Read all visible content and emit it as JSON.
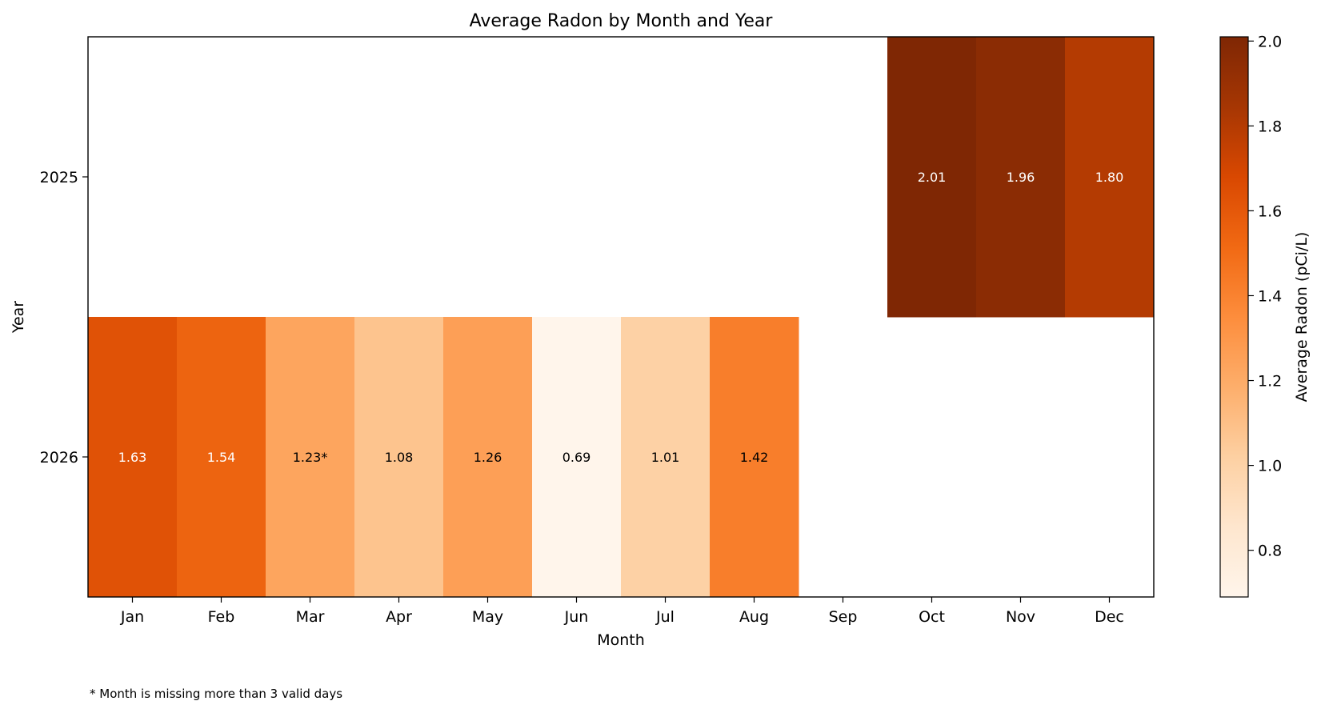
{
  "chart_data": {
    "type": "heatmap",
    "title": "Average Radon by Month and Year",
    "xlabel": "Month",
    "ylabel": "Year",
    "x_categories": [
      "Jan",
      "Feb",
      "Mar",
      "Apr",
      "May",
      "Jun",
      "Jul",
      "Aug",
      "Sep",
      "Oct",
      "Nov",
      "Dec"
    ],
    "y_categories": [
      "2025",
      "2026"
    ],
    "values": [
      [
        null,
        null,
        null,
        null,
        null,
        null,
        null,
        null,
        null,
        2.01,
        1.96,
        1.8
      ],
      [
        1.63,
        1.54,
        1.23,
        1.08,
        1.26,
        0.69,
        1.01,
        1.42,
        null,
        null,
        null,
        null
      ]
    ],
    "cell_labels": [
      [
        "",
        "",
        "",
        "",
        "",
        "",
        "",
        "",
        "",
        "2.01",
        "1.96",
        "1.80"
      ],
      [
        "1.63",
        "1.54",
        "1.23*",
        "1.08",
        "1.26",
        "0.69",
        "1.01",
        "1.42",
        "",
        "",
        "",
        ""
      ]
    ],
    "colorbar": {
      "label": "Average Radon (pCi/L)",
      "range": [
        0.69,
        2.01
      ],
      "ticks": [
        0.8,
        1.0,
        1.2,
        1.4,
        1.6,
        1.8,
        2.0
      ],
      "tick_labels": [
        "0.8",
        "1.0",
        "1.2",
        "1.4",
        "1.6",
        "1.8",
        "2.0"
      ],
      "colormap": "Oranges",
      "colormap_stops": [
        "#fff5eb",
        "#fee6ce",
        "#fdd0a2",
        "#fdae6b",
        "#fd8d3c",
        "#f16913",
        "#d94801",
        "#a63603",
        "#7f2704"
      ]
    },
    "footnote": "* Month is missing more than 3 valid days"
  }
}
